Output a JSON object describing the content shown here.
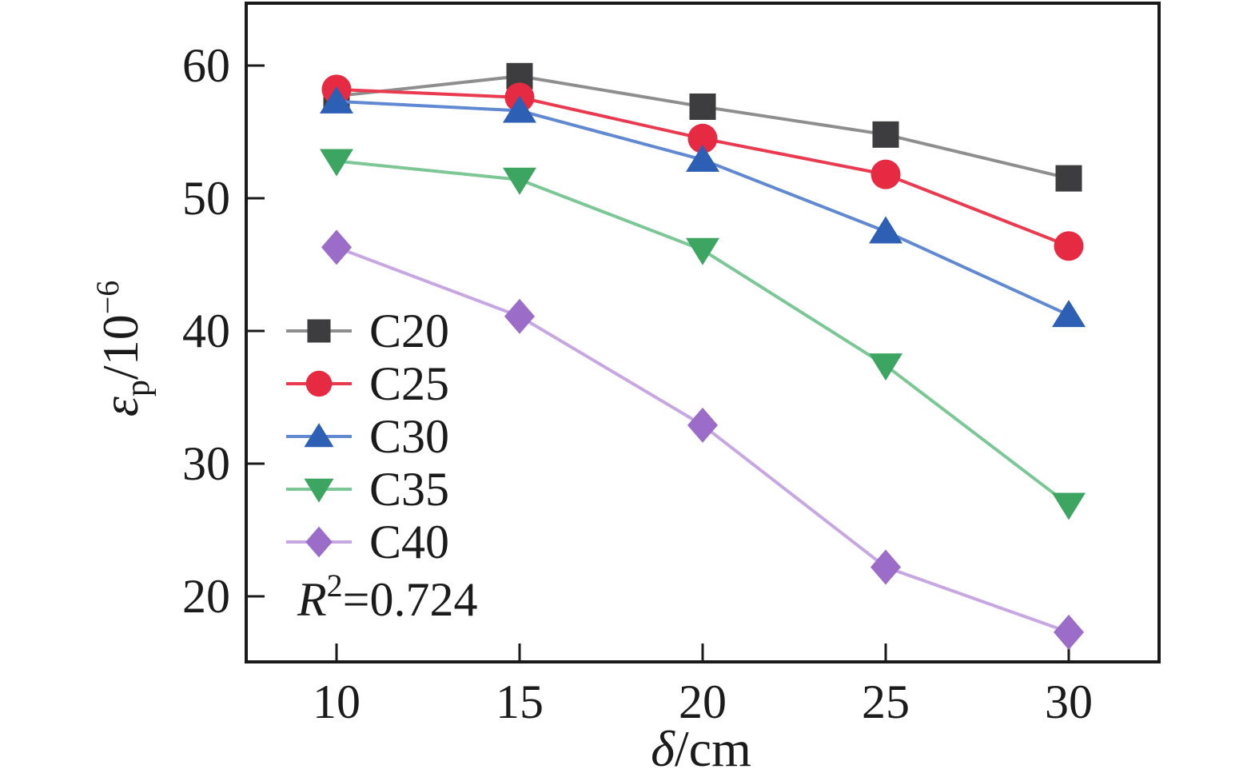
{
  "figure": {
    "background": "#ffffff",
    "axis_color": "#1a1a1a",
    "text_color": "#1b1b1b"
  },
  "chart_data": {
    "type": "line",
    "x": [
      10,
      15,
      20,
      25,
      30
    ],
    "series": [
      {
        "name": "C20",
        "marker": "square",
        "marker_color": "#3d3d3f",
        "line_color": "#8e8e8e",
        "values": [
          57.7,
          59.2,
          56.9,
          54.8,
          51.5
        ]
      },
      {
        "name": "C25",
        "marker": "circle",
        "marker_color": "#e62a42",
        "line_color": "#ea3a50",
        "values": [
          58.2,
          57.6,
          54.5,
          51.8,
          46.4
        ]
      },
      {
        "name": "C30",
        "marker": "triangle-up",
        "marker_color": "#2d5fb5",
        "line_color": "#6089d2",
        "values": [
          57.3,
          56.6,
          52.9,
          47.5,
          41.2
        ]
      },
      {
        "name": "C35",
        "marker": "triangle-down",
        "marker_color": "#3ca562",
        "line_color": "#7bc795",
        "values": [
          52.8,
          51.4,
          46.1,
          37.4,
          26.9
        ]
      },
      {
        "name": "C40",
        "marker": "diamond",
        "marker_color": "#9c6cc9",
        "line_color": "#c7a7e2",
        "values": [
          46.3,
          41.1,
          32.9,
          22.2,
          17.3
        ]
      }
    ],
    "title": "",
    "xlabel_parts": {
      "symbol": "δ",
      "rest": "/cm"
    },
    "ylabel_parts": {
      "symbol": "ε",
      "sub": "p",
      "rest": "/10",
      "sup": "−6"
    },
    "x_tick_labels": [
      "10",
      "15",
      "20",
      "25",
      "30"
    ],
    "y_tick_labels": [
      "20",
      "30",
      "40",
      "50",
      "60"
    ],
    "y_tick_values": [
      20,
      30,
      40,
      50,
      60
    ],
    "xlim": [
      7.5,
      32.5
    ],
    "ylim": [
      15.1,
      64.8
    ],
    "grid": false,
    "legend_position": "inside-left",
    "annotation_parts": {
      "var": "R",
      "sup": "2",
      "rest": "=0.724"
    }
  }
}
